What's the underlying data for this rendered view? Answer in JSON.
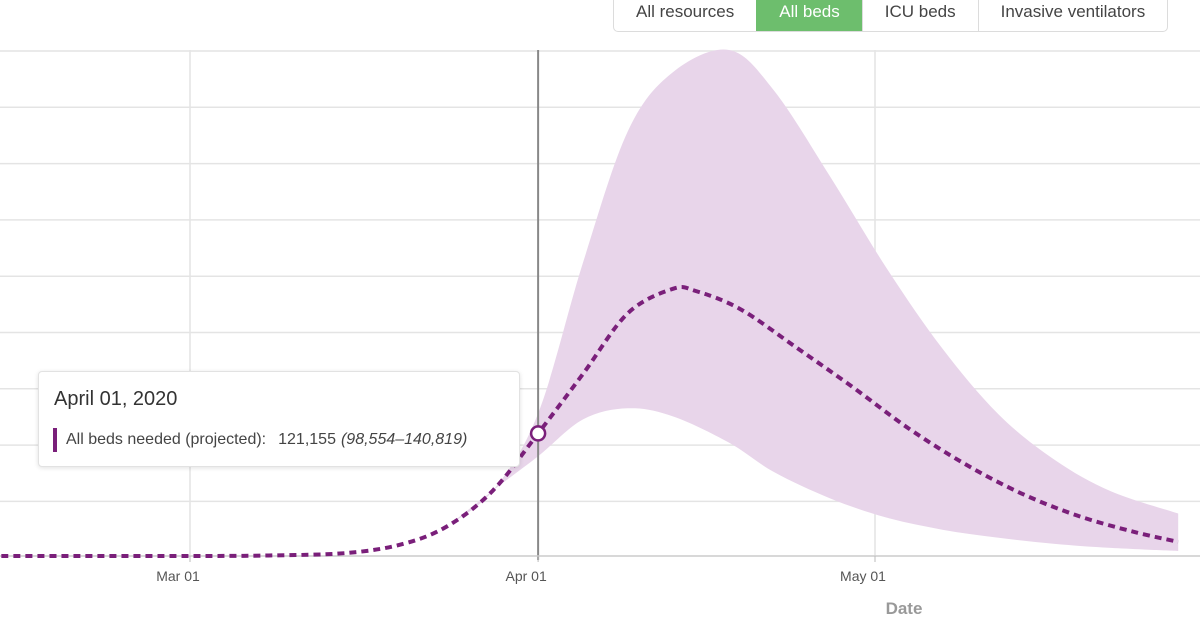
{
  "tabs": [
    {
      "label": "All resources",
      "active": false
    },
    {
      "label": "All beds",
      "active": true
    },
    {
      "label": "ICU beds",
      "active": false
    },
    {
      "label": "Invasive ventilators",
      "active": false
    }
  ],
  "tooltip": {
    "date": "April 01, 2020",
    "series_label": "All beds needed (projected):",
    "value": "121,155",
    "range": "(98,554–140,819)"
  },
  "colors": {
    "line": "#7a1f7a",
    "band": "#e8d5ea",
    "active_tab": "#6dbe6d",
    "grid": "#e4e4e4",
    "cursor": "#888888"
  },
  "chart_data": {
    "type": "line",
    "title": "",
    "xlabel": "Date",
    "ylabel": "",
    "x_ticks": [
      "Mar 01",
      "Apr 01",
      "May 01"
    ],
    "cursor_date": "Apr 01",
    "series": [
      {
        "name": "All beds needed (projected)",
        "style": "dotted",
        "x": [
          "Feb 10",
          "Feb 20",
          "Mar 01",
          "Mar 08",
          "Mar 15",
          "Mar 20",
          "Mar 24",
          "Mar 28",
          "Apr 01",
          "Apr 05",
          "Apr 09",
          "Apr 13",
          "Apr 15",
          "Apr 19",
          "Apr 24",
          "Apr 29",
          "May 04",
          "May 09",
          "May 14",
          "May 19",
          "May 24",
          "May 28"
        ],
        "values": [
          0,
          0,
          0,
          500,
          3000,
          12000,
          30000,
          65000,
          121155,
          180000,
          240000,
          264000,
          262000,
          244000,
          206000,
          167000,
          126000,
          91000,
          62000,
          40000,
          24000,
          14000
        ]
      }
    ],
    "band": {
      "name": "Uncertainty interval",
      "x": [
        "Mar 24",
        "Mar 28",
        "Apr 01",
        "Apr 05",
        "Apr 09",
        "Apr 13",
        "Apr 18",
        "Apr 22",
        "Apr 27",
        "May 02",
        "May 07",
        "May 12",
        "May 17",
        "May 22",
        "May 28"
      ],
      "lower": [
        30000,
        65000,
        98554,
        135000,
        146000,
        138000,
        112000,
        83000,
        57000,
        38000,
        26000,
        18000,
        12000,
        8000,
        5000
      ],
      "upper": [
        30000,
        65000,
        140819,
        290000,
        420000,
        478000,
        500000,
        460000,
        375000,
        285000,
        205000,
        140000,
        95000,
        64000,
        42000
      ]
    },
    "ylim": [
      0,
      500000
    ],
    "grid": true
  }
}
